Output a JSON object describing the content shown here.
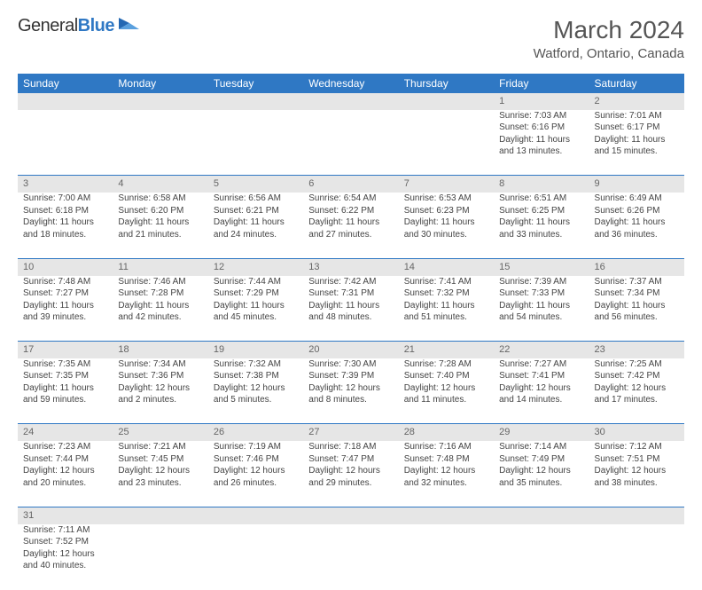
{
  "logo": {
    "word1": "General",
    "word2": "Blue"
  },
  "title": "March 2024",
  "location": "Watford, Ontario, Canada",
  "colors": {
    "header_bg": "#2f78c4",
    "header_fg": "#ffffff",
    "stripe_bg": "#e6e6e6",
    "rule": "#2f78c4",
    "text": "#444444"
  },
  "weekdays": [
    "Sunday",
    "Monday",
    "Tuesday",
    "Wednesday",
    "Thursday",
    "Friday",
    "Saturday"
  ],
  "weeks": [
    [
      null,
      null,
      null,
      null,
      null,
      {
        "n": "1",
        "sr": "Sunrise: 7:03 AM",
        "ss": "Sunset: 6:16 PM",
        "dl": "Daylight: 11 hours and 13 minutes."
      },
      {
        "n": "2",
        "sr": "Sunrise: 7:01 AM",
        "ss": "Sunset: 6:17 PM",
        "dl": "Daylight: 11 hours and 15 minutes."
      }
    ],
    [
      {
        "n": "3",
        "sr": "Sunrise: 7:00 AM",
        "ss": "Sunset: 6:18 PM",
        "dl": "Daylight: 11 hours and 18 minutes."
      },
      {
        "n": "4",
        "sr": "Sunrise: 6:58 AM",
        "ss": "Sunset: 6:20 PM",
        "dl": "Daylight: 11 hours and 21 minutes."
      },
      {
        "n": "5",
        "sr": "Sunrise: 6:56 AM",
        "ss": "Sunset: 6:21 PM",
        "dl": "Daylight: 11 hours and 24 minutes."
      },
      {
        "n": "6",
        "sr": "Sunrise: 6:54 AM",
        "ss": "Sunset: 6:22 PM",
        "dl": "Daylight: 11 hours and 27 minutes."
      },
      {
        "n": "7",
        "sr": "Sunrise: 6:53 AM",
        "ss": "Sunset: 6:23 PM",
        "dl": "Daylight: 11 hours and 30 minutes."
      },
      {
        "n": "8",
        "sr": "Sunrise: 6:51 AM",
        "ss": "Sunset: 6:25 PM",
        "dl": "Daylight: 11 hours and 33 minutes."
      },
      {
        "n": "9",
        "sr": "Sunrise: 6:49 AM",
        "ss": "Sunset: 6:26 PM",
        "dl": "Daylight: 11 hours and 36 minutes."
      }
    ],
    [
      {
        "n": "10",
        "sr": "Sunrise: 7:48 AM",
        "ss": "Sunset: 7:27 PM",
        "dl": "Daylight: 11 hours and 39 minutes."
      },
      {
        "n": "11",
        "sr": "Sunrise: 7:46 AM",
        "ss": "Sunset: 7:28 PM",
        "dl": "Daylight: 11 hours and 42 minutes."
      },
      {
        "n": "12",
        "sr": "Sunrise: 7:44 AM",
        "ss": "Sunset: 7:29 PM",
        "dl": "Daylight: 11 hours and 45 minutes."
      },
      {
        "n": "13",
        "sr": "Sunrise: 7:42 AM",
        "ss": "Sunset: 7:31 PM",
        "dl": "Daylight: 11 hours and 48 minutes."
      },
      {
        "n": "14",
        "sr": "Sunrise: 7:41 AM",
        "ss": "Sunset: 7:32 PM",
        "dl": "Daylight: 11 hours and 51 minutes."
      },
      {
        "n": "15",
        "sr": "Sunrise: 7:39 AM",
        "ss": "Sunset: 7:33 PM",
        "dl": "Daylight: 11 hours and 54 minutes."
      },
      {
        "n": "16",
        "sr": "Sunrise: 7:37 AM",
        "ss": "Sunset: 7:34 PM",
        "dl": "Daylight: 11 hours and 56 minutes."
      }
    ],
    [
      {
        "n": "17",
        "sr": "Sunrise: 7:35 AM",
        "ss": "Sunset: 7:35 PM",
        "dl": "Daylight: 11 hours and 59 minutes."
      },
      {
        "n": "18",
        "sr": "Sunrise: 7:34 AM",
        "ss": "Sunset: 7:36 PM",
        "dl": "Daylight: 12 hours and 2 minutes."
      },
      {
        "n": "19",
        "sr": "Sunrise: 7:32 AM",
        "ss": "Sunset: 7:38 PM",
        "dl": "Daylight: 12 hours and 5 minutes."
      },
      {
        "n": "20",
        "sr": "Sunrise: 7:30 AM",
        "ss": "Sunset: 7:39 PM",
        "dl": "Daylight: 12 hours and 8 minutes."
      },
      {
        "n": "21",
        "sr": "Sunrise: 7:28 AM",
        "ss": "Sunset: 7:40 PM",
        "dl": "Daylight: 12 hours and 11 minutes."
      },
      {
        "n": "22",
        "sr": "Sunrise: 7:27 AM",
        "ss": "Sunset: 7:41 PM",
        "dl": "Daylight: 12 hours and 14 minutes."
      },
      {
        "n": "23",
        "sr": "Sunrise: 7:25 AM",
        "ss": "Sunset: 7:42 PM",
        "dl": "Daylight: 12 hours and 17 minutes."
      }
    ],
    [
      {
        "n": "24",
        "sr": "Sunrise: 7:23 AM",
        "ss": "Sunset: 7:44 PM",
        "dl": "Daylight: 12 hours and 20 minutes."
      },
      {
        "n": "25",
        "sr": "Sunrise: 7:21 AM",
        "ss": "Sunset: 7:45 PM",
        "dl": "Daylight: 12 hours and 23 minutes."
      },
      {
        "n": "26",
        "sr": "Sunrise: 7:19 AM",
        "ss": "Sunset: 7:46 PM",
        "dl": "Daylight: 12 hours and 26 minutes."
      },
      {
        "n": "27",
        "sr": "Sunrise: 7:18 AM",
        "ss": "Sunset: 7:47 PM",
        "dl": "Daylight: 12 hours and 29 minutes."
      },
      {
        "n": "28",
        "sr": "Sunrise: 7:16 AM",
        "ss": "Sunset: 7:48 PM",
        "dl": "Daylight: 12 hours and 32 minutes."
      },
      {
        "n": "29",
        "sr": "Sunrise: 7:14 AM",
        "ss": "Sunset: 7:49 PM",
        "dl": "Daylight: 12 hours and 35 minutes."
      },
      {
        "n": "30",
        "sr": "Sunrise: 7:12 AM",
        "ss": "Sunset: 7:51 PM",
        "dl": "Daylight: 12 hours and 38 minutes."
      }
    ],
    [
      {
        "n": "31",
        "sr": "Sunrise: 7:11 AM",
        "ss": "Sunset: 7:52 PM",
        "dl": "Daylight: 12 hours and 40 minutes."
      },
      null,
      null,
      null,
      null,
      null,
      null
    ]
  ]
}
